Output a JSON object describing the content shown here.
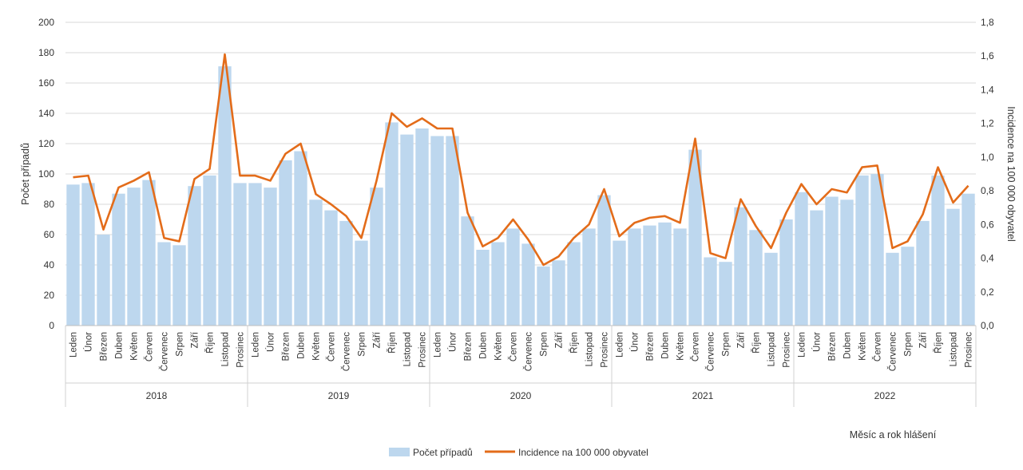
{
  "chart_data": {
    "type": "bar",
    "title": "",
    "ylabel": "Počet případů",
    "y2label": "Incidence na 100 000 obyvatel",
    "xlabel": "Měsíc a rok hlášení",
    "ylim": [
      0,
      200
    ],
    "y2lim": [
      0,
      1.8
    ],
    "y_ticks": [
      "0",
      "20",
      "40",
      "60",
      "80",
      "100",
      "120",
      "140",
      "160",
      "180",
      "200"
    ],
    "y2_ticks": [
      "0,0",
      "0,2",
      "0,4",
      "0,6",
      "0,8",
      "1,0",
      "1,2",
      "1,4",
      "1,6",
      "1,8"
    ],
    "years": [
      "2018",
      "2019",
      "2020",
      "2021",
      "2022"
    ],
    "months": [
      "Leden",
      "Únor",
      "Březen",
      "Duben",
      "Květen",
      "Červen",
      "Červenec",
      "Srpen",
      "Září",
      "Říjen",
      "Listopad",
      "Prosinec"
    ],
    "series": [
      {
        "name": "Počet případů",
        "kind": "bar",
        "color": "#bdd7ee",
        "values": [
          93,
          94,
          60,
          87,
          91,
          96,
          55,
          53,
          92,
          99,
          171,
          94,
          94,
          91,
          109,
          115,
          83,
          76,
          69,
          56,
          91,
          134,
          126,
          130,
          125,
          125,
          72,
          50,
          55,
          64,
          54,
          39,
          43,
          55,
          64,
          86,
          56,
          64,
          66,
          68,
          64,
          116,
          45,
          42,
          78,
          63,
          48,
          70,
          88,
          76,
          85,
          83,
          99,
          100,
          48,
          52,
          69,
          99,
          77,
          87
        ]
      },
      {
        "name": "Incidence na 100 000 obyvatel",
        "kind": "line",
        "color": "#e36c1a",
        "values": [
          0.88,
          0.89,
          0.57,
          0.82,
          0.86,
          0.91,
          0.52,
          0.5,
          0.87,
          0.93,
          1.61,
          0.89,
          0.89,
          0.86,
          1.02,
          1.08,
          0.78,
          0.72,
          0.65,
          0.52,
          0.86,
          1.26,
          1.18,
          1.23,
          1.17,
          1.17,
          0.67,
          0.47,
          0.52,
          0.63,
          0.51,
          0.36,
          0.41,
          0.52,
          0.6,
          0.81,
          0.53,
          0.61,
          0.64,
          0.65,
          0.61,
          1.11,
          0.43,
          0.4,
          0.75,
          0.59,
          0.46,
          0.67,
          0.84,
          0.72,
          0.81,
          0.79,
          0.94,
          0.95,
          0.46,
          0.5,
          0.66,
          0.94,
          0.73,
          0.83
        ]
      }
    ],
    "legend_position": "bottom-center",
    "grid": true
  }
}
